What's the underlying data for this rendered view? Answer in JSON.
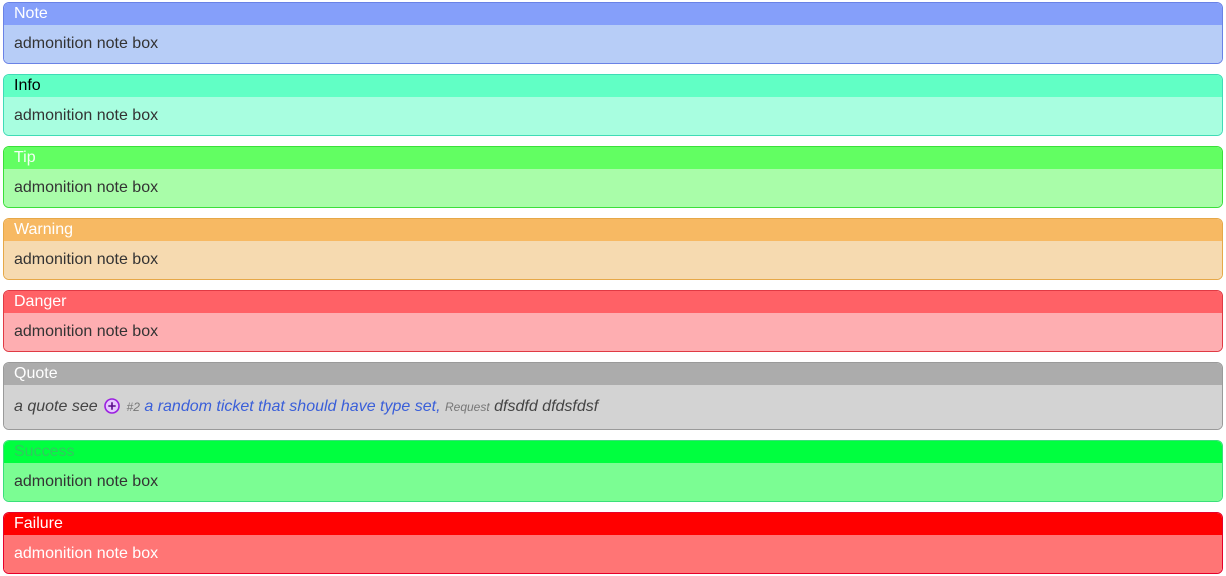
{
  "note": {
    "title": "Note",
    "text": "admonition note box"
  },
  "info": {
    "title": "Info",
    "text": "admonition note box"
  },
  "tip": {
    "title": "Tip",
    "text": "admonition note box"
  },
  "warning": {
    "title": "Warning",
    "text": "admonition note box"
  },
  "danger": {
    "title": "Danger",
    "text": "admonition note box"
  },
  "quote": {
    "title": "Quote",
    "prefix": "a quote see",
    "ticket_icon": "plus-circle-icon",
    "ticket_id": "#2",
    "ticket_title": "a random ticket that should have type set",
    "separator": ",",
    "ticket_type": "Request",
    "suffix": "dfsdfd dfdsfdsf"
  },
  "success": {
    "title": "Success",
    "text": "admonition note box"
  },
  "failure": {
    "title": "Failure",
    "text": "admonition note box"
  },
  "colors": {
    "note": "#859ffa",
    "info": "#61ffc5",
    "tip": "#62fe62",
    "warning": "#f7b963",
    "danger": "#ff6166",
    "quote": "#acacac",
    "success": "#00ff3f",
    "failure": "#ff0000",
    "ticket_icon": "#9b1ee0",
    "link": "#3a5fd9"
  }
}
